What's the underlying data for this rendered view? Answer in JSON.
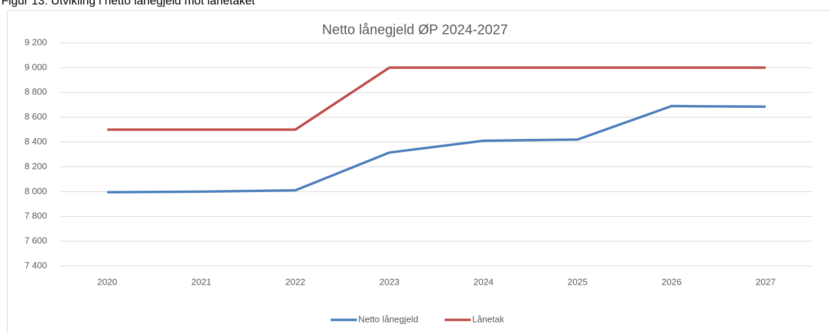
{
  "caption": "Figur 13: Utvikling i netto lånegjeld mot lånetaket",
  "chart_data": {
    "type": "line",
    "title": "Netto lånegjeld ØP 2024-2027",
    "categories": [
      "2020",
      "2021",
      "2022",
      "2023",
      "2024",
      "2025",
      "2026",
      "2027"
    ],
    "series": [
      {
        "name": "Netto lånegjeld",
        "color": "#4a7ebb",
        "values": [
          7995,
          8000,
          8010,
          8315,
          8410,
          8420,
          8690,
          8685
        ]
      },
      {
        "name": "Lånetak",
        "color": "#be4b48",
        "values": [
          8500,
          8500,
          8500,
          9000,
          9000,
          9000,
          9000,
          9000
        ]
      }
    ],
    "ylim": [
      7400,
      9200
    ],
    "yticks": [
      {
        "value": 7400,
        "label": "7 400"
      },
      {
        "value": 7600,
        "label": "7 600"
      },
      {
        "value": 7800,
        "label": "7 800"
      },
      {
        "value": 8000,
        "label": "8 000"
      },
      {
        "value": 8200,
        "label": "8 200"
      },
      {
        "value": 8400,
        "label": "8 400"
      },
      {
        "value": 8600,
        "label": "8 600"
      },
      {
        "value": 8800,
        "label": "8 800"
      },
      {
        "value": 9000,
        "label": "9 000"
      },
      {
        "value": 9200,
        "label": "9 200"
      }
    ],
    "grid": true,
    "legend": "bottom"
  }
}
